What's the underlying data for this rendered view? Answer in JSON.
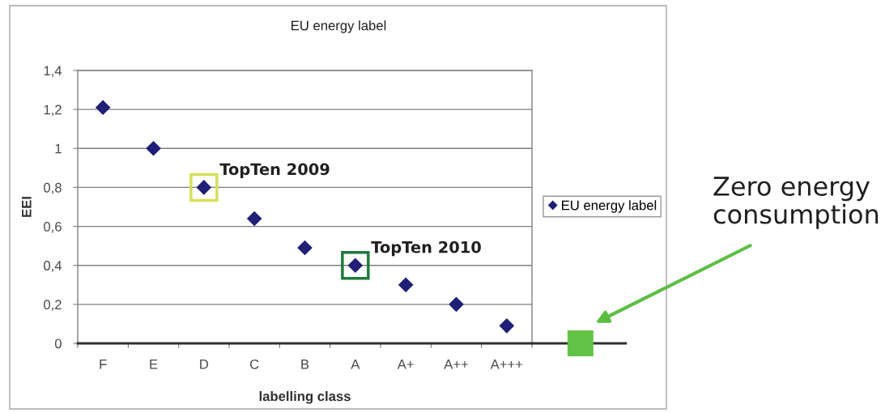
{
  "chart_data": {
    "type": "scatter",
    "title": "EU energy label",
    "xlabel": "labelling class",
    "ylabel": "EEI",
    "categories": [
      "F",
      "E",
      "D",
      "C",
      "B",
      "A",
      "A+",
      "A++",
      "A+++"
    ],
    "series": [
      {
        "name": "EU energy label",
        "color": "#1f1f78",
        "values": [
          1.21,
          1.0,
          0.8,
          0.64,
          0.49,
          0.4,
          0.3,
          0.2,
          0.09
        ]
      }
    ],
    "ylim": [
      0,
      1.4
    ],
    "yticks": [
      0,
      {
        "value": 0.2,
        "label": "0,2"
      },
      {
        "value": 0.4,
        "label": "0,4"
      },
      {
        "value": 0.6,
        "label": "0,6"
      },
      {
        "value": 0.8,
        "label": "0,8"
      },
      1,
      {
        "value": 1.2,
        "label": "1,2"
      },
      {
        "value": 1.4,
        "label": "1,4"
      }
    ],
    "grid": "y",
    "legend": "right",
    "marker": "diamond",
    "annotations": [
      {
        "text": "TopTen 2009",
        "x": "D",
        "y": 0.8
      },
      {
        "text": "TopTen 2010",
        "x": "A",
        "y": 0.4
      },
      "Zero energy\nconsumption"
    ]
  }
}
